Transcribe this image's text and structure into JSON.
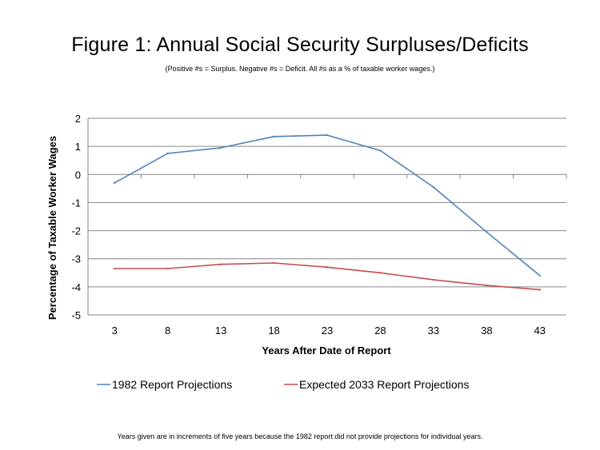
{
  "chart_data": {
    "type": "line",
    "title": "Figure 1: Annual Social Security Surpluses/Deficits",
    "subtitle": "(Positive #s = Surplus.  Negative  #s = Deficit.  All #s as a % of taxable worker wages.)",
    "xlabel": "Years After Date of Report",
    "ylabel": "Percentage of Taxable Worker Wages",
    "x": [
      3,
      8,
      13,
      18,
      23,
      28,
      33,
      38,
      43
    ],
    "ylim": [
      -5,
      2
    ],
    "yticks": [
      2,
      1,
      0,
      -1,
      -2,
      -3,
      -4,
      -5
    ],
    "grid": true,
    "legend_position": "bottom",
    "series": [
      {
        "name": "1982 Report Projections",
        "color": "#4f81bd",
        "values": [
          -0.3,
          0.75,
          0.95,
          1.35,
          1.4,
          0.85,
          -0.45,
          -2.05,
          -3.6
        ]
      },
      {
        "name": "Expected 2033 Report Projections",
        "color": "#c0504d",
        "values": [
          -3.35,
          -3.35,
          -3.2,
          -3.15,
          -3.3,
          -3.5,
          -3.75,
          -3.95,
          -4.1
        ]
      }
    ],
    "footnote": "Years given are in increments of five years because the 1982 report did not provide projections for individual years."
  }
}
